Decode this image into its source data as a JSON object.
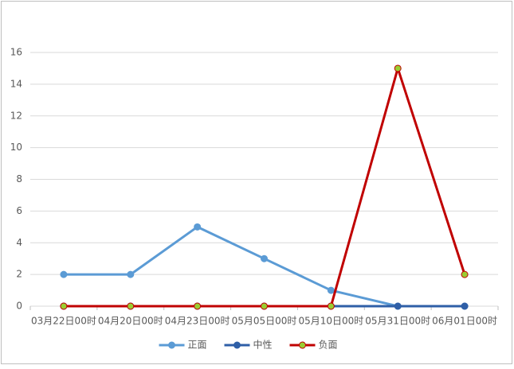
{
  "chart_data": {
    "type": "line",
    "categories": [
      "03月22日00时",
      "04月20日00时",
      "04月23日00时",
      "05月05日00时",
      "05月10日00时",
      "05月31日00时",
      "06月01日00时"
    ],
    "series": [
      {
        "name": "正面",
        "color": "#5b9bd5",
        "marker_color": "#5b9bd5",
        "values": [
          2,
          2,
          5,
          3,
          1,
          0,
          0
        ]
      },
      {
        "name": "中性",
        "color": "#2f5fa7",
        "marker_color": "#2f5fa7",
        "values": [
          0,
          0,
          0,
          0,
          0,
          0,
          0
        ]
      },
      {
        "name": "负面",
        "color": "#c00000",
        "marker_color": "#9acd32",
        "values": [
          0,
          0,
          0,
          0,
          0,
          15,
          2
        ]
      }
    ],
    "ylim": [
      0,
      16
    ],
    "yticks": [
      0,
      2,
      4,
      6,
      8,
      10,
      12,
      14,
      16
    ],
    "grid": true,
    "legend": "bottom"
  }
}
